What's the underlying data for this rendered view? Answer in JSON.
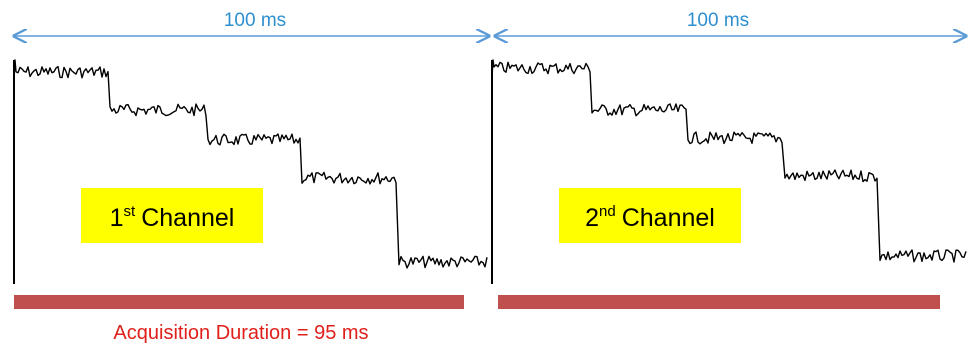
{
  "colors": {
    "arrow": "#5b9bd5",
    "interval_text": "#2e8fd0",
    "trace": "#000000",
    "label_box": "#ffff00",
    "duration_bar": "#c0504d",
    "caption_text": "#e0201b"
  },
  "intervals": [
    {
      "label": "100 ms"
    },
    {
      "label": "100 ms"
    }
  ],
  "channels": [
    {
      "number": "1",
      "suffix": "st",
      "word": "Channel"
    },
    {
      "number": "2",
      "suffix": "nd",
      "word": "Channel"
    }
  ],
  "caption": "Acquisition Duration = 95 ms"
}
